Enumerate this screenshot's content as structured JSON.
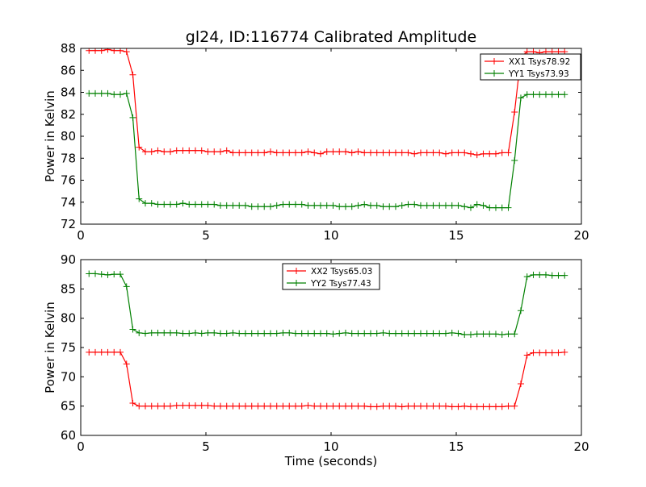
{
  "chart_data": [
    {
      "type": "line",
      "title": "gl24, ID:116774 Calibrated Amplitude",
      "xlabel": "",
      "ylabel": "Power in Kelvin",
      "xlim": [
        0,
        20
      ],
      "ylim": [
        72,
        88
      ],
      "xticks": [
        0,
        5,
        10,
        15,
        20
      ],
      "yticks": [
        72,
        74,
        76,
        78,
        80,
        82,
        84,
        86,
        88
      ],
      "legend_position": "top-right",
      "series": [
        {
          "name": "XX1 Tsys78.92",
          "color": "#ff0000",
          "x": [
            0.33,
            0.58,
            0.83,
            1.08,
            1.33,
            1.58,
            1.83,
            2.08,
            2.33,
            2.58,
            2.83,
            3.08,
            3.33,
            3.58,
            3.83,
            4.08,
            4.33,
            4.58,
            4.83,
            5.08,
            5.33,
            5.58,
            5.83,
            6.08,
            6.33,
            6.58,
            6.83,
            7.08,
            7.33,
            7.58,
            7.83,
            8.08,
            8.33,
            8.58,
            8.83,
            9.08,
            9.33,
            9.58,
            9.83,
            10.08,
            10.33,
            10.58,
            10.83,
            11.08,
            11.33,
            11.58,
            11.83,
            12.08,
            12.33,
            12.58,
            12.83,
            13.08,
            13.33,
            13.58,
            13.83,
            14.08,
            14.33,
            14.58,
            14.83,
            15.08,
            15.33,
            15.58,
            15.83,
            16.08,
            16.33,
            16.58,
            16.83,
            17.08,
            17.33,
            17.58,
            17.83,
            18.08,
            18.33,
            18.58,
            18.83,
            19.08,
            19.33
          ],
          "y": [
            87.8,
            87.8,
            87.8,
            87.9,
            87.8,
            87.8,
            87.7,
            85.6,
            79.0,
            78.6,
            78.6,
            78.7,
            78.6,
            78.6,
            78.7,
            78.7,
            78.7,
            78.7,
            78.7,
            78.6,
            78.6,
            78.6,
            78.7,
            78.5,
            78.5,
            78.5,
            78.5,
            78.5,
            78.5,
            78.6,
            78.5,
            78.5,
            78.5,
            78.5,
            78.5,
            78.6,
            78.5,
            78.4,
            78.6,
            78.6,
            78.6,
            78.6,
            78.5,
            78.6,
            78.5,
            78.5,
            78.5,
            78.5,
            78.5,
            78.5,
            78.5,
            78.5,
            78.4,
            78.5,
            78.5,
            78.5,
            78.5,
            78.4,
            78.5,
            78.5,
            78.5,
            78.4,
            78.3,
            78.4,
            78.4,
            78.4,
            78.5,
            78.5,
            82.2,
            87.2,
            87.7,
            87.7,
            87.6,
            87.7,
            87.7,
            87.7,
            87.7
          ]
        },
        {
          "name": "YY1 Tsys73.93",
          "color": "#008000",
          "x": [
            0.33,
            0.58,
            0.83,
            1.08,
            1.33,
            1.58,
            1.83,
            2.08,
            2.33,
            2.58,
            2.83,
            3.08,
            3.33,
            3.58,
            3.83,
            4.08,
            4.33,
            4.58,
            4.83,
            5.08,
            5.33,
            5.58,
            5.83,
            6.08,
            6.33,
            6.58,
            6.83,
            7.08,
            7.33,
            7.58,
            7.83,
            8.08,
            8.33,
            8.58,
            8.83,
            9.08,
            9.33,
            9.58,
            9.83,
            10.08,
            10.33,
            10.58,
            10.83,
            11.08,
            11.33,
            11.58,
            11.83,
            12.08,
            12.33,
            12.58,
            12.83,
            13.08,
            13.33,
            13.58,
            13.83,
            14.08,
            14.33,
            14.58,
            14.83,
            15.08,
            15.33,
            15.58,
            15.83,
            16.08,
            16.33,
            16.58,
            16.83,
            17.08,
            17.33,
            17.58,
            17.83,
            18.08,
            18.33,
            18.58,
            18.83,
            19.08,
            19.33
          ],
          "y": [
            83.9,
            83.9,
            83.9,
            83.9,
            83.8,
            83.8,
            83.9,
            81.7,
            74.3,
            73.9,
            73.9,
            73.8,
            73.8,
            73.8,
            73.8,
            73.9,
            73.8,
            73.8,
            73.8,
            73.8,
            73.8,
            73.7,
            73.7,
            73.7,
            73.7,
            73.7,
            73.6,
            73.6,
            73.6,
            73.6,
            73.7,
            73.8,
            73.8,
            73.8,
            73.8,
            73.7,
            73.7,
            73.7,
            73.7,
            73.7,
            73.6,
            73.6,
            73.6,
            73.7,
            73.8,
            73.7,
            73.7,
            73.6,
            73.6,
            73.6,
            73.7,
            73.8,
            73.8,
            73.7,
            73.7,
            73.7,
            73.7,
            73.7,
            73.7,
            73.7,
            73.6,
            73.5,
            73.8,
            73.7,
            73.5,
            73.5,
            73.5,
            73.5,
            77.8,
            83.5,
            83.8,
            83.8,
            83.8,
            83.8,
            83.8,
            83.8,
            83.8
          ]
        }
      ]
    },
    {
      "type": "line",
      "title": "",
      "xlabel": "Time (seconds)",
      "ylabel": "Power in Kelvin",
      "xlim": [
        0,
        20
      ],
      "ylim": [
        60,
        90
      ],
      "xticks": [
        0,
        5,
        10,
        15,
        20
      ],
      "yticks": [
        60,
        65,
        70,
        75,
        80,
        85,
        90
      ],
      "legend_position": "top-center",
      "series": [
        {
          "name": "XX2 Tsys65.03",
          "color": "#ff0000",
          "x": [
            0.33,
            0.58,
            0.83,
            1.08,
            1.33,
            1.58,
            1.83,
            2.08,
            2.33,
            2.58,
            2.83,
            3.08,
            3.33,
            3.58,
            3.83,
            4.08,
            4.33,
            4.58,
            4.83,
            5.08,
            5.33,
            5.58,
            5.83,
            6.08,
            6.33,
            6.58,
            6.83,
            7.08,
            7.33,
            7.58,
            7.83,
            8.08,
            8.33,
            8.58,
            8.83,
            9.08,
            9.33,
            9.58,
            9.83,
            10.08,
            10.33,
            10.58,
            10.83,
            11.08,
            11.33,
            11.58,
            11.83,
            12.08,
            12.33,
            12.58,
            12.83,
            13.08,
            13.33,
            13.58,
            13.83,
            14.08,
            14.33,
            14.58,
            14.83,
            15.08,
            15.33,
            15.58,
            15.83,
            16.08,
            16.33,
            16.58,
            16.83,
            17.08,
            17.33,
            17.58,
            17.83,
            18.08,
            18.33,
            18.58,
            18.83,
            19.08,
            19.33
          ],
          "y": [
            74.2,
            74.2,
            74.2,
            74.2,
            74.2,
            74.2,
            72.2,
            65.5,
            65.0,
            65.0,
            65.0,
            65.0,
            65.0,
            65.0,
            65.1,
            65.1,
            65.1,
            65.1,
            65.1,
            65.1,
            65.0,
            65.0,
            65.0,
            65.0,
            65.0,
            65.0,
            65.0,
            65.0,
            65.0,
            65.0,
            65.0,
            65.0,
            65.0,
            65.0,
            65.0,
            65.1,
            65.0,
            65.0,
            65.0,
            65.0,
            65.0,
            65.0,
            65.0,
            65.0,
            65.0,
            64.9,
            64.9,
            65.0,
            65.0,
            65.0,
            64.9,
            65.0,
            65.0,
            65.0,
            65.0,
            65.0,
            65.0,
            65.0,
            64.9,
            64.9,
            65.0,
            64.9,
            64.9,
            64.9,
            64.9,
            64.9,
            64.9,
            65.0,
            65.0,
            68.8,
            73.7,
            74.1,
            74.1,
            74.1,
            74.1,
            74.1,
            74.2
          ]
        },
        {
          "name": "YY2 Tsys77.43",
          "color": "#008000",
          "x": [
            0.33,
            0.58,
            0.83,
            1.08,
            1.33,
            1.58,
            1.83,
            2.08,
            2.33,
            2.58,
            2.83,
            3.08,
            3.33,
            3.58,
            3.83,
            4.08,
            4.33,
            4.58,
            4.83,
            5.08,
            5.33,
            5.58,
            5.83,
            6.08,
            6.33,
            6.58,
            6.83,
            7.08,
            7.33,
            7.58,
            7.83,
            8.08,
            8.33,
            8.58,
            8.83,
            9.08,
            9.33,
            9.58,
            9.83,
            10.08,
            10.33,
            10.58,
            10.83,
            11.08,
            11.33,
            11.58,
            11.83,
            12.08,
            12.33,
            12.58,
            12.83,
            13.08,
            13.33,
            13.58,
            13.83,
            14.08,
            14.33,
            14.58,
            14.83,
            15.08,
            15.33,
            15.58,
            15.83,
            16.08,
            16.33,
            16.58,
            16.83,
            17.08,
            17.33,
            17.58,
            17.83,
            18.08,
            18.33,
            18.58,
            18.83,
            19.08,
            19.33
          ],
          "y": [
            87.6,
            87.6,
            87.5,
            87.4,
            87.5,
            87.5,
            85.4,
            78.1,
            77.5,
            77.4,
            77.5,
            77.5,
            77.5,
            77.5,
            77.5,
            77.4,
            77.4,
            77.5,
            77.4,
            77.5,
            77.5,
            77.4,
            77.4,
            77.5,
            77.4,
            77.4,
            77.4,
            77.4,
            77.4,
            77.4,
            77.4,
            77.5,
            77.5,
            77.4,
            77.4,
            77.4,
            77.4,
            77.4,
            77.4,
            77.3,
            77.4,
            77.5,
            77.4,
            77.4,
            77.4,
            77.4,
            77.4,
            77.5,
            77.4,
            77.4,
            77.4,
            77.4,
            77.4,
            77.4,
            77.4,
            77.4,
            77.4,
            77.4,
            77.5,
            77.4,
            77.2,
            77.2,
            77.3,
            77.3,
            77.3,
            77.3,
            77.2,
            77.3,
            77.3,
            81.3,
            87.1,
            87.4,
            87.4,
            87.4,
            87.3,
            87.3,
            87.3
          ]
        }
      ]
    }
  ]
}
